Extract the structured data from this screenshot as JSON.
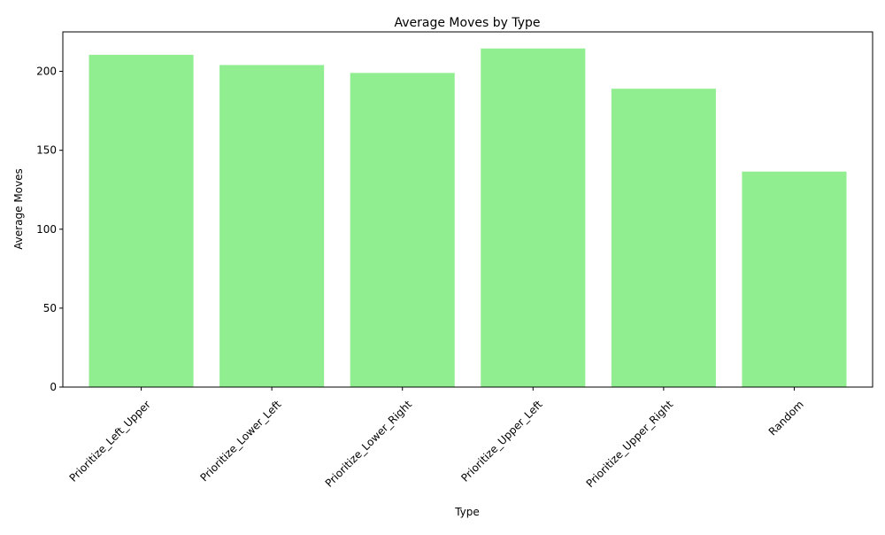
{
  "chart_data": {
    "type": "bar",
    "title": "Average Moves by Type",
    "xlabel": "Type",
    "ylabel": "Average Moves",
    "categories": [
      "Prioritize_Left_Upper",
      "Prioritize_Lower_Left",
      "Prioritize_Lower_Right",
      "Prioritize_Upper_Left",
      "Prioritize_Upper_Right",
      "Random"
    ],
    "values": [
      210.5,
      204.0,
      199.0,
      214.5,
      189.0,
      136.5
    ],
    "ylim": [
      0,
      225
    ],
    "yticks": [
      0,
      50,
      100,
      150,
      200
    ],
    "bar_color": "#90ee90",
    "grid": false,
    "legend": "none"
  }
}
